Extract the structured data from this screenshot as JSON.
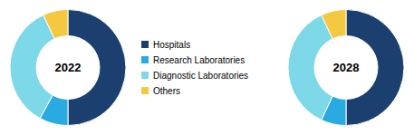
{
  "chart_data": [
    {
      "type": "pie",
      "title": "2022",
      "categories": [
        "Hospitals",
        "Research Laboratories",
        "Diagnostic Laboratories",
        "Others"
      ],
      "values": [
        50,
        8,
        35,
        7
      ],
      "colors": [
        "#1b3f6e",
        "#29abe2",
        "#7dd8e8",
        "#f5c842"
      ],
      "legend": "right"
    },
    {
      "type": "pie",
      "title": "2028",
      "categories": [
        "Hospitals",
        "Research Laboratories",
        "Diagnostic Laboratories",
        "Others"
      ],
      "values": [
        50,
        7,
        36,
        7
      ],
      "colors": [
        "#1b3f6e",
        "#29abe2",
        "#7dd8e8",
        "#f5c842"
      ]
    }
  ]
}
